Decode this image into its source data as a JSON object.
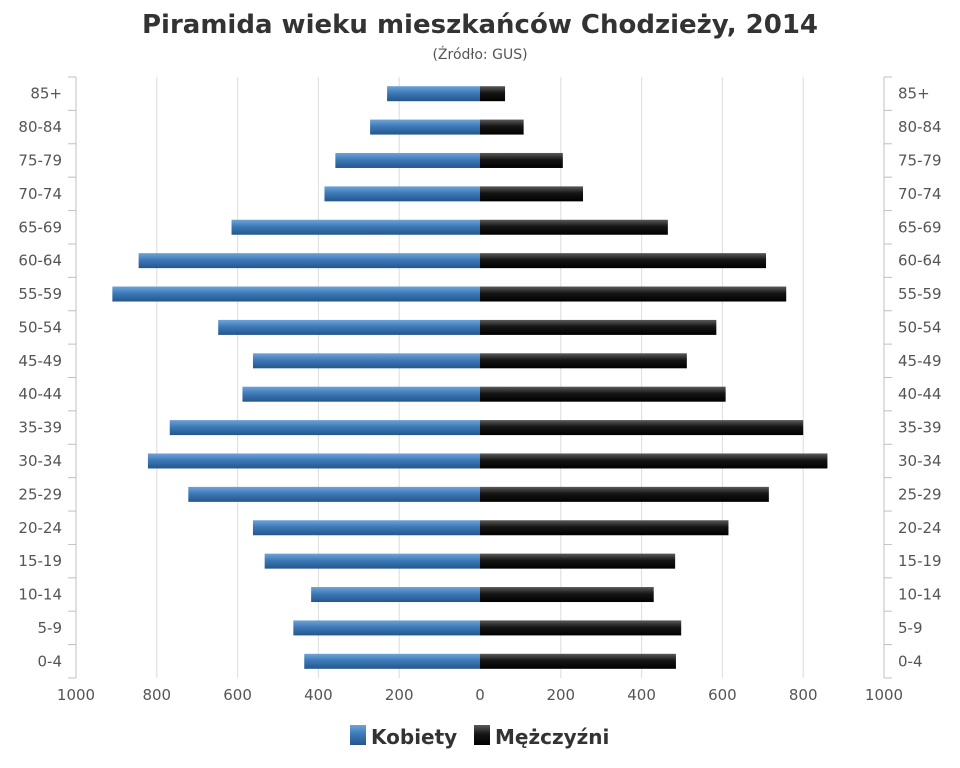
{
  "chart_data": {
    "type": "bar",
    "orientation": "horizontal-pyramid",
    "title": "Piramida wieku mieszkańców Chodzieży, 2014",
    "subtitle": "(Źródło: GUS)",
    "categories": [
      "85+",
      "80-84",
      "75-79",
      "70-74",
      "65-69",
      "60-64",
      "55-59",
      "50-54",
      "45-49",
      "40-44",
      "35-39",
      "30-34",
      "25-29",
      "20-24",
      "15-19",
      "10-14",
      "5-9",
      "0-4"
    ],
    "series": [
      {
        "name": "Kobiety",
        "side": "left",
        "color": "#3d7ab8",
        "values": [
          230,
          272,
          358,
          385,
          615,
          845,
          910,
          648,
          562,
          588,
          768,
          822,
          722,
          562,
          533,
          418,
          462,
          435
        ]
      },
      {
        "name": "Mężczyźni",
        "side": "right",
        "color": "#111111",
        "values": [
          62,
          108,
          205,
          255,
          465,
          708,
          758,
          585,
          512,
          608,
          800,
          860,
          715,
          615,
          483,
          430,
          498,
          485
        ]
      }
    ],
    "x_ticks": [
      "1000",
      "800",
      "600",
      "400",
      "200",
      "0",
      "200",
      "400",
      "600",
      "800",
      "1000"
    ],
    "xlim": [
      -1000,
      1000
    ],
    "grid": "vertical",
    "legend": "bottom-center"
  }
}
